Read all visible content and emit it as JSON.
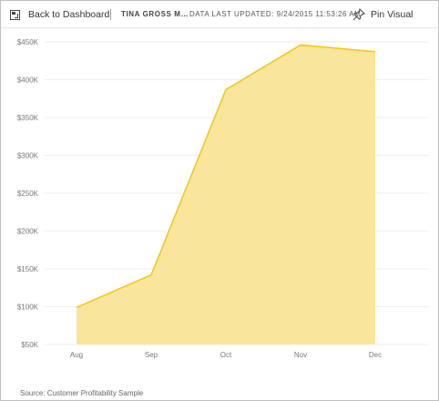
{
  "toolbar": {
    "back_label": "Back to Dashboard",
    "report_title": "TINA GROSS MA...",
    "last_updated": "DATA LAST UPDATED: 9/24/2015 11:53:26 AM",
    "pin_label": "Pin Visual"
  },
  "colors": {
    "area_fill": "#F9E59B",
    "area_line": "#F2C811",
    "grid": "#eeeeee"
  },
  "chart_data": {
    "type": "area",
    "categories": [
      "Aug",
      "Sep",
      "Oct",
      "Nov",
      "Dec"
    ],
    "values": [
      99000,
      142000,
      387000,
      446000,
      437000
    ],
    "y_ticks": [
      "$50K",
      "$100K",
      "$150K",
      "$200K",
      "$250K",
      "$300K",
      "$350K",
      "$400K",
      "$450K"
    ],
    "ylim": [
      50000,
      450000
    ],
    "legend": "none",
    "grid": true
  },
  "footer": {
    "source": "Source: Customer Profitability Sample"
  }
}
